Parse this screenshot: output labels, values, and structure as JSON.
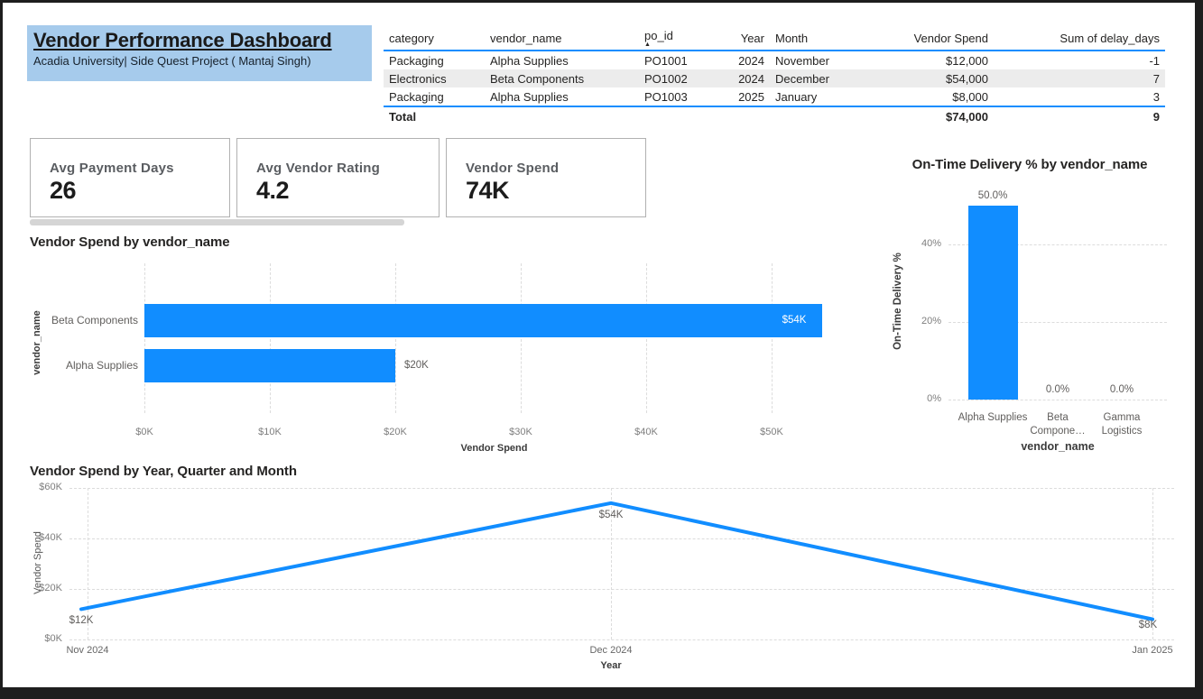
{
  "header": {
    "title": "Vendor Performance Dashboard",
    "subtitle": "Acadia University| Side Quest Project ( Mantaj Singh)"
  },
  "po_table": {
    "columns": [
      "category",
      "vendor_name",
      "po_id",
      "Year",
      "Month",
      "Vendor Spend",
      "Sum of delay_days"
    ],
    "sort_column": "po_id",
    "sort_icon": "▲",
    "rows": [
      [
        "Packaging",
        "Alpha Supplies",
        "PO1001",
        "2024",
        "November",
        "$12,000",
        "-1"
      ],
      [
        "Electronics",
        "Beta Components",
        "PO1002",
        "2024",
        "December",
        "$54,000",
        "7"
      ],
      [
        "Packaging",
        "Alpha Supplies",
        "PO1003",
        "2025",
        "January",
        "$8,000",
        "3"
      ]
    ],
    "total_row": [
      "Total",
      "",
      "",
      "",
      "",
      "$74,000",
      "9"
    ]
  },
  "kpi_cards": [
    {
      "label": "Avg Payment Days",
      "value": "26"
    },
    {
      "label": "Avg Vendor Rating",
      "value": "4.2"
    },
    {
      "label": "Vendor Spend",
      "value": "74K"
    }
  ],
  "colors": {
    "accent": "#118DFF",
    "header_bg": "#A6CBEC",
    "row_alt": "#ECECEC",
    "frame": "#1E1E1E",
    "inside_bar_label": "#FFFFFF"
  },
  "chart_data": [
    {
      "type": "bar",
      "orientation": "horizontal",
      "title": "Vendor Spend by vendor_name",
      "categories": [
        "Beta Components",
        "Alpha Supplies"
      ],
      "values": [
        54000,
        20000
      ],
      "data_labels": [
        "$54K",
        "$20K"
      ],
      "xlabel": "Vendor Spend",
      "ylabel": "vendor_name",
      "xlim": [
        0,
        55000
      ],
      "xticks": [
        "$0K",
        "$10K",
        "$20K",
        "$30K",
        "$40K",
        "$50K"
      ],
      "xtick_values": [
        0,
        10000,
        20000,
        30000,
        40000,
        50000
      ],
      "grid": "vertical-dashed"
    },
    {
      "type": "bar",
      "orientation": "vertical",
      "title": "On-Time Delivery % by vendor_name",
      "categories": [
        "Alpha Supplies",
        "Beta Compone…",
        "Gamma Logistics"
      ],
      "values": [
        50.0,
        0.0,
        0.0
      ],
      "data_labels": [
        "50.0%",
        "0.0%",
        "0.0%"
      ],
      "xlabel": "vendor_name",
      "ylabel": "On-Time Delivery %",
      "ylim": [
        0,
        50
      ],
      "yticks": [
        "0%",
        "20%",
        "40%"
      ],
      "ytick_values": [
        0,
        20,
        40
      ],
      "grid": "horizontal-dashed"
    },
    {
      "type": "line",
      "title": "Vendor Spend by Year, Quarter and Month",
      "x": [
        "Nov 2024",
        "Dec 2024",
        "Jan 2025"
      ],
      "values": [
        12000,
        54000,
        8000
      ],
      "data_labels": [
        "$12K",
        "$54K",
        "$8K"
      ],
      "xlabel": "Year",
      "ylabel": "Vendor Spend",
      "ylim": [
        0,
        60000
      ],
      "yticks": [
        "$0K",
        "$20K",
        "$40K",
        "$60K"
      ],
      "ytick_values": [
        0,
        20000,
        40000,
        60000
      ],
      "grid": "both-dashed"
    }
  ]
}
